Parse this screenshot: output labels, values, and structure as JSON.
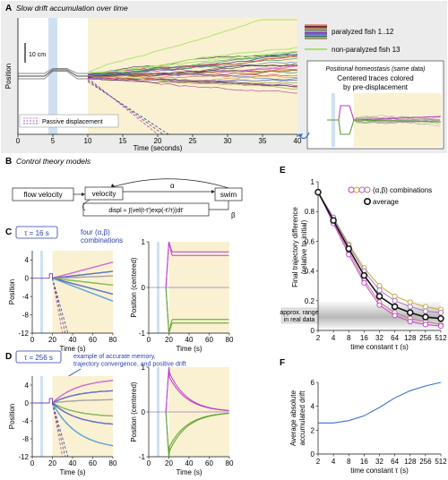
{
  "panel_a": {
    "letter": "A",
    "title": "Slow drift accumulation over time",
    "scale_bar": "10 cm",
    "ylabel": "Position",
    "legend_paralyzed": "paralyzed fish 1..12",
    "legend_nonparalyzed": "non-paralyzed fish 13",
    "legend_passive": "Passive displacement",
    "inset_title": "Positional homeostasis (same data)",
    "inset_text_1": "Centered traces colored",
    "inset_text_2": "by pre-displacement"
  },
  "panel_b": {
    "letter": "B",
    "title": "Control theory models",
    "box_flow": "flow velocity",
    "box_velocity": "velocity",
    "box_swim": "swim",
    "box_displ": "displ ≈ ∫(vel(t-t')exp(-t'/τ))dt'",
    "alpha": "α",
    "beta": "β"
  },
  "panel_c": {
    "letter": "C",
    "tau_label": "τ = 16 s",
    "annotation": "four (α,β) combinations",
    "ylabel_left": "Position",
    "ylabel_right": "Position (centered)",
    "xlabel": "Time (s)"
  },
  "panel_d": {
    "letter": "D",
    "tau_label": "τ = 256 s",
    "annotation": "example of accurate memory, trajectory convergence, and positive drift",
    "ylabel_left": "Position",
    "ylabel_right": "Position (centered)",
    "xlabel": "Time (s)"
  },
  "panel_e": {
    "letter": "E",
    "legend_combos": "(α,β) combinations",
    "legend_avg": "average",
    "ylabel": "Final trajectory difference (relative to initial)",
    "xlabel": "time constant τ (s)",
    "band_label": "approx. range in real data"
  },
  "panel_f": {
    "letter": "F",
    "ylabel": "Average absolute accumulated drift",
    "xlabel": "time constant τ (s)"
  },
  "colors": {
    "shade": "#f9f1d2",
    "stim": "#cfe0f3",
    "magenta": "#c23bc8",
    "green": "#5aa02c",
    "navy": "#2a3fb0",
    "blue_line": "#3b6fd1"
  },
  "chart_data": [
    {
      "type": "line",
      "title": "Slow drift accumulation over time",
      "xlabel": "Time (seconds)",
      "ylabel": "Position",
      "xlim": [
        0,
        40
      ],
      "x_ticks": [
        0,
        5,
        10,
        15,
        20,
        25,
        30,
        35,
        40
      ],
      "series_note": "12 paralyzed fish + 1 non-paralyzed fish, plus passive displacement traces"
    },
    {
      "type": "line",
      "xlabel": "Time (s)",
      "ylabel": "Position",
      "xlim": [
        0,
        80
      ],
      "ylim": [
        -12,
        6
      ],
      "x_ticks": [
        0,
        20,
        40,
        60,
        80
      ],
      "y_ticks": [
        4,
        0,
        -4,
        -8,
        -12
      ]
    },
    {
      "type": "line",
      "xlabel": "Time (s)",
      "ylabel": "Position (centered)",
      "xlim": [
        0,
        80
      ],
      "ylim": [
        -1,
        1
      ],
      "x_ticks": [
        0,
        20,
        40,
        60,
        80
      ],
      "y_ticks": [
        1,
        0,
        -1
      ]
    },
    {
      "type": "line",
      "xlabel": "Time (s)",
      "ylabel": "Position",
      "xlim": [
        0,
        80
      ],
      "ylim": [
        -12,
        6
      ],
      "x_ticks": [
        0,
        20,
        40,
        60,
        80
      ],
      "y_ticks": [
        4,
        0,
        -4,
        -8,
        -12
      ]
    },
    {
      "type": "line",
      "xlabel": "Time (s)",
      "ylabel": "Position (centered)",
      "xlim": [
        0,
        80
      ],
      "ylim": [
        -1,
        1
      ],
      "x_ticks": [
        0,
        20,
        40,
        60,
        80
      ],
      "y_ticks": [
        1,
        0,
        -1
      ]
    },
    {
      "type": "line",
      "xlabel": "time constant τ (s)",
      "ylabel": "Final trajectory difference (relative to initial)",
      "categories": [
        "2",
        "4",
        "8",
        "16",
        "32",
        "64",
        "128",
        "256",
        "512"
      ],
      "ylim": [
        0,
        1
      ],
      "y_ticks": [
        0,
        0.2,
        0.4,
        0.6,
        0.8,
        1
      ],
      "series": [
        {
          "name": "average",
          "values": [
            0.93,
            0.74,
            0.55,
            0.37,
            0.23,
            0.16,
            0.12,
            0.09,
            0.08
          ]
        },
        {
          "values": [
            0.93,
            0.76,
            0.58,
            0.42,
            0.3,
            0.23,
            0.19,
            0.16,
            0.14
          ]
        },
        {
          "values": [
            0.93,
            0.76,
            0.57,
            0.4,
            0.27,
            0.2,
            0.16,
            0.13,
            0.12
          ]
        },
        {
          "values": [
            0.93,
            0.73,
            0.53,
            0.34,
            0.19,
            0.12,
            0.08,
            0.06,
            0.04
          ]
        },
        {
          "values": [
            0.93,
            0.72,
            0.51,
            0.32,
            0.17,
            0.1,
            0.06,
            0.04,
            0.03
          ]
        }
      ]
    },
    {
      "type": "line",
      "xlabel": "time constant τ (s)",
      "ylabel": "Average absolute accumulated drift",
      "categories": [
        "2",
        "4",
        "8",
        "16",
        "32",
        "64",
        "128",
        "256",
        "512"
      ],
      "ylim": [
        0,
        6
      ],
      "y_ticks": [
        0,
        2,
        4,
        6
      ],
      "values": [
        2.6,
        2.6,
        2.8,
        3.2,
        3.9,
        4.7,
        5.3,
        5.7,
        6.0
      ]
    }
  ]
}
